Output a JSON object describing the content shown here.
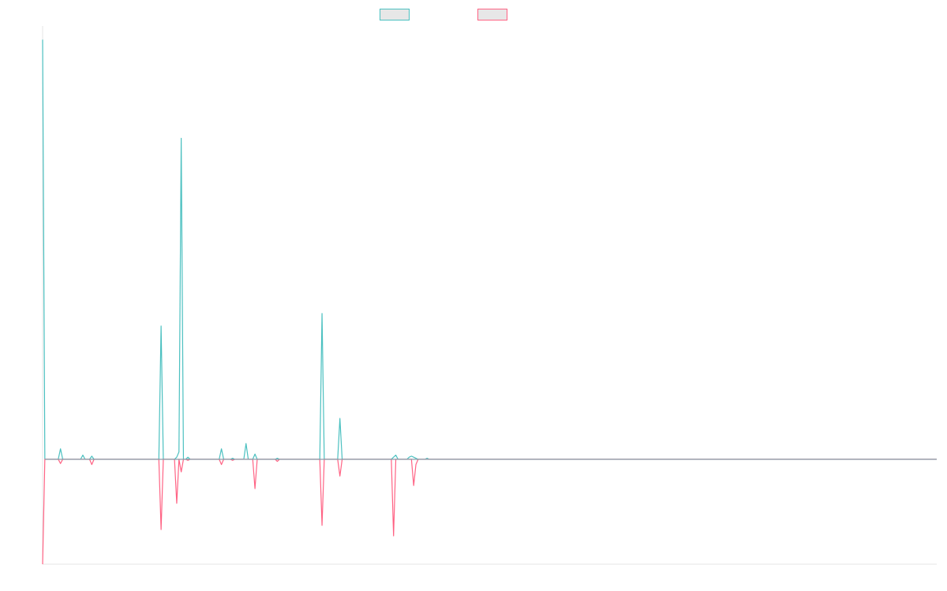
{
  "chart_data": {
    "type": "line",
    "title": "",
    "xlabel": "",
    "ylabel": "",
    "grid": false,
    "legend_position": "top-center",
    "ylim": [
      -1.0,
      4.1
    ],
    "series": [
      {
        "name": "",
        "color": "#4bc0c0",
        "fill": "#e7e7e7",
        "points": [
          [
            0,
            4
          ],
          [
            1,
            0
          ],
          [
            7,
            0
          ],
          [
            8,
            0.1
          ],
          [
            9,
            0
          ],
          [
            17,
            0
          ],
          [
            18,
            0.04
          ],
          [
            19,
            0
          ],
          [
            21,
            0
          ],
          [
            22,
            0.03
          ],
          [
            23,
            0
          ],
          [
            52,
            0
          ],
          [
            53,
            1.27
          ],
          [
            54,
            0
          ],
          [
            59,
            0
          ],
          [
            60,
            0.02
          ],
          [
            61,
            0.07
          ],
          [
            62,
            3.06
          ],
          [
            63,
            0
          ],
          [
            64,
            0
          ],
          [
            65,
            0.02
          ],
          [
            66,
            0
          ],
          [
            79,
            0
          ],
          [
            80,
            0.1
          ],
          [
            81,
            0
          ],
          [
            84,
            0
          ],
          [
            85,
            0.01
          ],
          [
            86,
            0
          ],
          [
            90,
            0
          ],
          [
            91,
            0.15
          ],
          [
            92,
            0
          ],
          [
            94,
            0
          ],
          [
            95,
            0.05
          ],
          [
            96,
            0
          ],
          [
            104,
            0
          ],
          [
            105,
            0.01
          ],
          [
            106,
            0
          ],
          [
            124,
            0
          ],
          [
            125,
            1.39
          ],
          [
            126,
            0
          ],
          [
            132,
            0
          ],
          [
            133,
            0.39
          ],
          [
            134,
            0
          ],
          [
            156,
            0
          ],
          [
            157,
            0.02
          ],
          [
            158,
            0.04
          ],
          [
            159,
            0
          ],
          [
            163,
            0
          ],
          [
            164,
            0.02
          ],
          [
            165,
            0.03
          ],
          [
            166,
            0.02
          ],
          [
            167,
            0.01
          ],
          [
            168,
            0
          ],
          [
            171,
            0
          ],
          [
            172,
            0.01
          ],
          [
            173,
            0
          ],
          [
            400,
            0
          ]
        ]
      },
      {
        "name": "",
        "color": "#ff6384",
        "fill": "#e7e7e7",
        "points": [
          [
            0,
            -1
          ],
          [
            1,
            0
          ],
          [
            7,
            0
          ],
          [
            8,
            -0.04
          ],
          [
            9,
            0
          ],
          [
            21,
            0
          ],
          [
            22,
            -0.05
          ],
          [
            23,
            0
          ],
          [
            52,
            0
          ],
          [
            53,
            -0.67
          ],
          [
            54,
            0
          ],
          [
            59,
            0
          ],
          [
            60,
            -0.42
          ],
          [
            61,
            0
          ],
          [
            62,
            -0.12
          ],
          [
            63,
            0
          ],
          [
            64,
            0
          ],
          [
            65,
            -0.01
          ],
          [
            66,
            0
          ],
          [
            79,
            0
          ],
          [
            80,
            -0.05
          ],
          [
            81,
            0
          ],
          [
            84,
            0
          ],
          [
            85,
            -0.01
          ],
          [
            86,
            0
          ],
          [
            94,
            0
          ],
          [
            95,
            -0.28
          ],
          [
            96,
            0
          ],
          [
            104,
            0
          ],
          [
            105,
            -0.02
          ],
          [
            106,
            0
          ],
          [
            124,
            0
          ],
          [
            125,
            -0.63
          ],
          [
            126,
            0
          ],
          [
            132,
            0
          ],
          [
            133,
            -0.16
          ],
          [
            134,
            0
          ],
          [
            156,
            0
          ],
          [
            157,
            -0.73
          ],
          [
            158,
            0
          ],
          [
            165,
            0
          ],
          [
            166,
            -0.25
          ],
          [
            167,
            -0.05
          ],
          [
            168,
            0
          ],
          [
            173,
            0
          ],
          [
            400,
            0
          ]
        ]
      }
    ]
  }
}
